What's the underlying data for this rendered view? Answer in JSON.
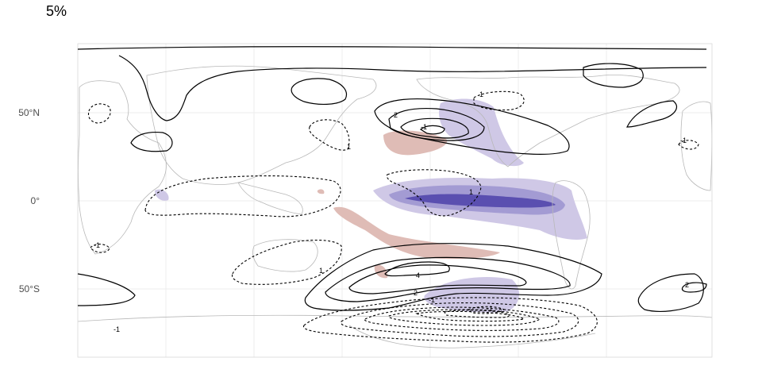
{
  "title": "5%",
  "lat_labels": [
    "50°N",
    "0°",
    "50°S"
  ],
  "contour_labels": {
    "n1": "1",
    "n2": "2",
    "n3": "1",
    "n4": "-1",
    "n5": "1",
    "n6": "1",
    "n7": "-1",
    "n8": "2",
    "n9": "4",
    "n10": "-1",
    "n11": "-1",
    "n12": "-1",
    "n13": "2",
    "n14": "-1"
  },
  "colors": {
    "positive_fill": "#dfbcb6",
    "negative_fill_light": "#cfc8e6",
    "negative_fill_mid": "#a39bd3",
    "negative_fill_dark": "#5a4fb0",
    "coastline": "#b8b8b8",
    "contour": "#000000",
    "grid": "#ececec"
  }
}
